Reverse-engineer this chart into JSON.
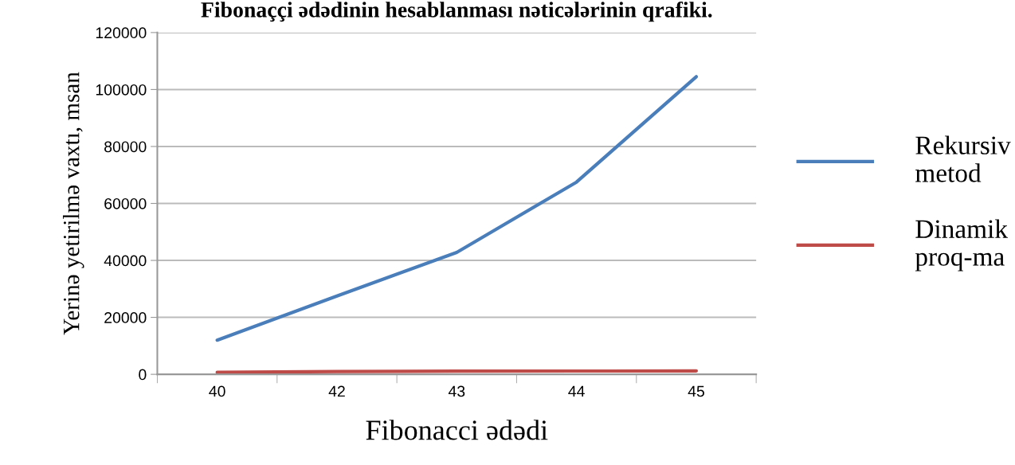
{
  "chart_data": {
    "type": "line",
    "title": "Fibonaççi ədədinin hesablanması nəticələrinin qrafiki.",
    "xlabel": "Fibonacci ədədi",
    "ylabel": "Yerinə yetirilmə vaxtı, msan",
    "categories": [
      "40",
      "42",
      "43",
      "44",
      "45"
    ],
    "series": [
      {
        "name": "Rekursiv\nmetod",
        "color": "#4a7ebb",
        "values": [
          12000,
          27500,
          42800,
          67500,
          104500
        ]
      },
      {
        "name": "Dinamik\nproq-ma",
        "color": "#be4b48",
        "values": [
          700,
          1000,
          1100,
          1150,
          1200
        ]
      }
    ],
    "ylim": [
      0,
      120000
    ],
    "yticks": [
      0,
      20000,
      40000,
      60000,
      80000,
      100000,
      120000
    ],
    "grid": "y",
    "legend": "right",
    "marker": "none",
    "line_style": "solid"
  }
}
